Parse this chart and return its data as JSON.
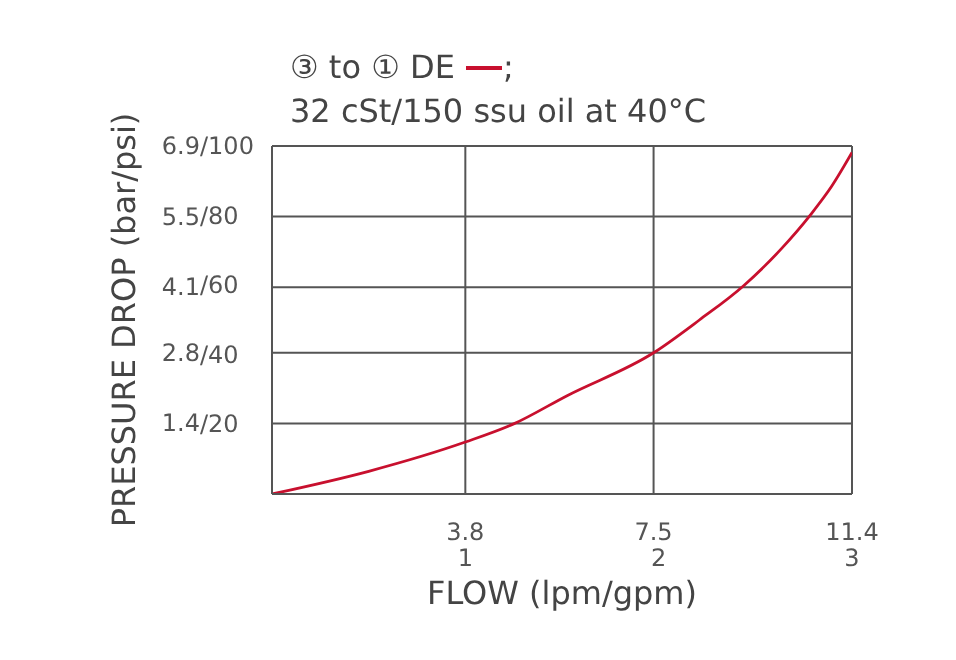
{
  "chart_data": {
    "type": "line",
    "title": "③ to ① DE",
    "subtitle": "32 cSt/150 ssu oil at 40°C",
    "annotations": [
      ";"
    ],
    "xlabel": "FLOW (lpm/gpm)",
    "ylabel": "PRESSURE DROP (bar/psi)",
    "x": [
      0,
      1.9,
      3.8,
      4.75,
      5.8,
      7.5,
      8.4,
      9.27,
      10.0,
      10.58,
      11.0,
      11.4
    ],
    "series": [
      {
        "color": "#c8102e",
        "values": [
          0,
          0.45,
          1.03,
          1.39,
          1.95,
          2.8,
          3.45,
          4.13,
          4.85,
          5.53,
          6.1,
          6.77
        ]
      }
    ],
    "xlim": [
      0,
      11.4
    ],
    "xticks": [
      3.8,
      7.5,
      11.4
    ],
    "x2lim": [
      0,
      3
    ],
    "x2ticks": [
      1,
      2,
      3
    ],
    "ylim": [
      0,
      6.9
    ],
    "yticks": [
      1.4,
      2.8,
      4.1,
      5.5,
      6.9
    ],
    "y2lim": [
      0,
      100
    ],
    "y2ticks": [
      {
        "value": 20,
        "label": "/20"
      },
      {
        "value": 40,
        "label": "/40"
      },
      {
        "value": 60,
        "label": "/60"
      },
      {
        "value": 80,
        "label": "/80"
      },
      {
        "value": 100,
        "label": "/100"
      }
    ],
    "grid": true,
    "marker": "none",
    "line_style": "solid"
  }
}
